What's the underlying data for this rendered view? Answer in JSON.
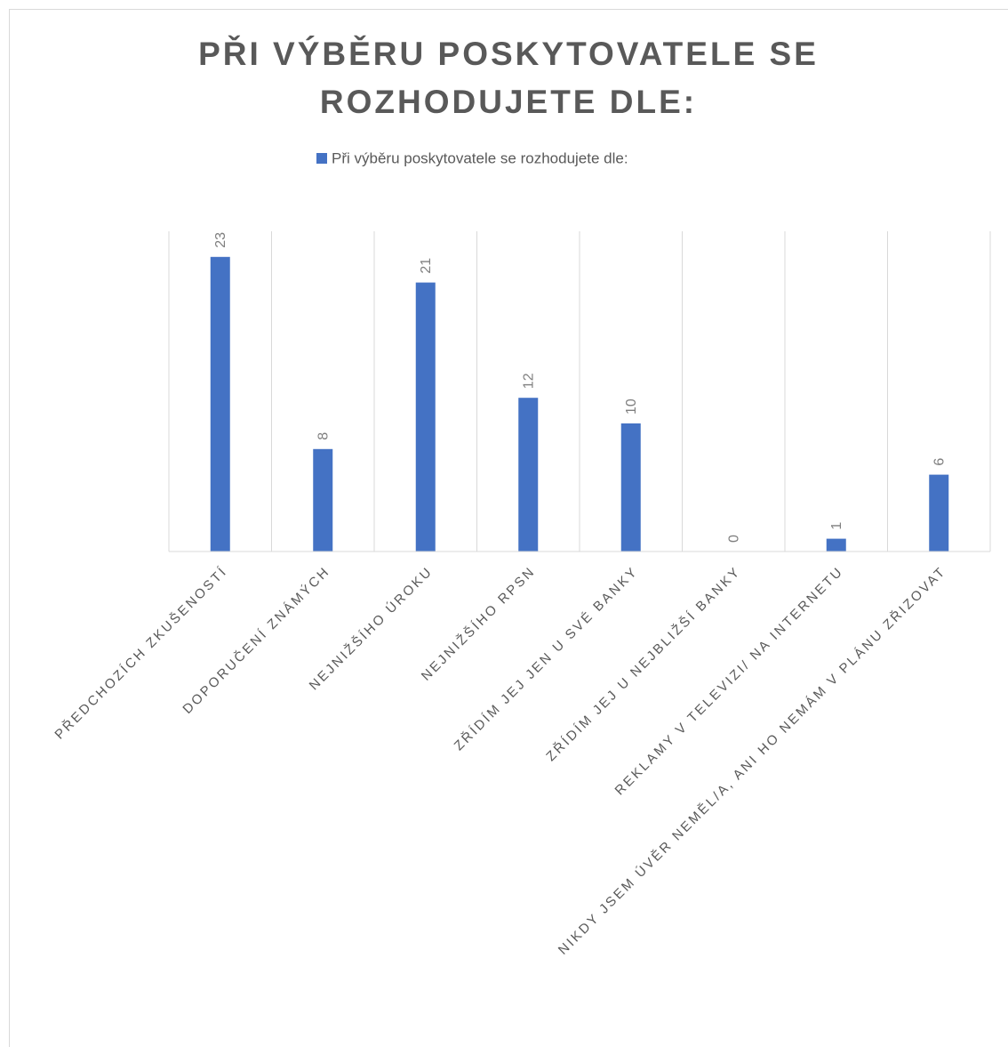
{
  "chart_data": {
    "type": "bar",
    "title": "PŘI VÝBĚRU POSKYTOVATELE SE ROZHODUJETE DLE:",
    "categories": [
      "PŘEDCHOZÍCH ZKUŠENOSTÍ",
      "DOPORUČENÍ ZNÁMÝCH",
      "NEJNIŽŠÍHO ÚROKU",
      "NEJNIŽŠÍHO RPSN",
      "ZŘÍDÍM JEJ JEN U SVÉ BANKY",
      "ZŘÍDÍM JEJ U NEJBLIŽŠÍ BANKY",
      "REKLAMY V TELEVIZI/ NA INTERNETU",
      "NIKDY JSEM ÚVĚR NEMĚL/A, ANI HO NEMÁM V PLÁNU ZŘIZOVAT"
    ],
    "series": [
      {
        "name": "Při výběru poskytovatele se rozhodujete dle:",
        "color": "#4472c4",
        "values": [
          23,
          8,
          21,
          12,
          10,
          0,
          1,
          6
        ]
      }
    ],
    "ylim": [
      0,
      25
    ],
    "legend": "top"
  }
}
